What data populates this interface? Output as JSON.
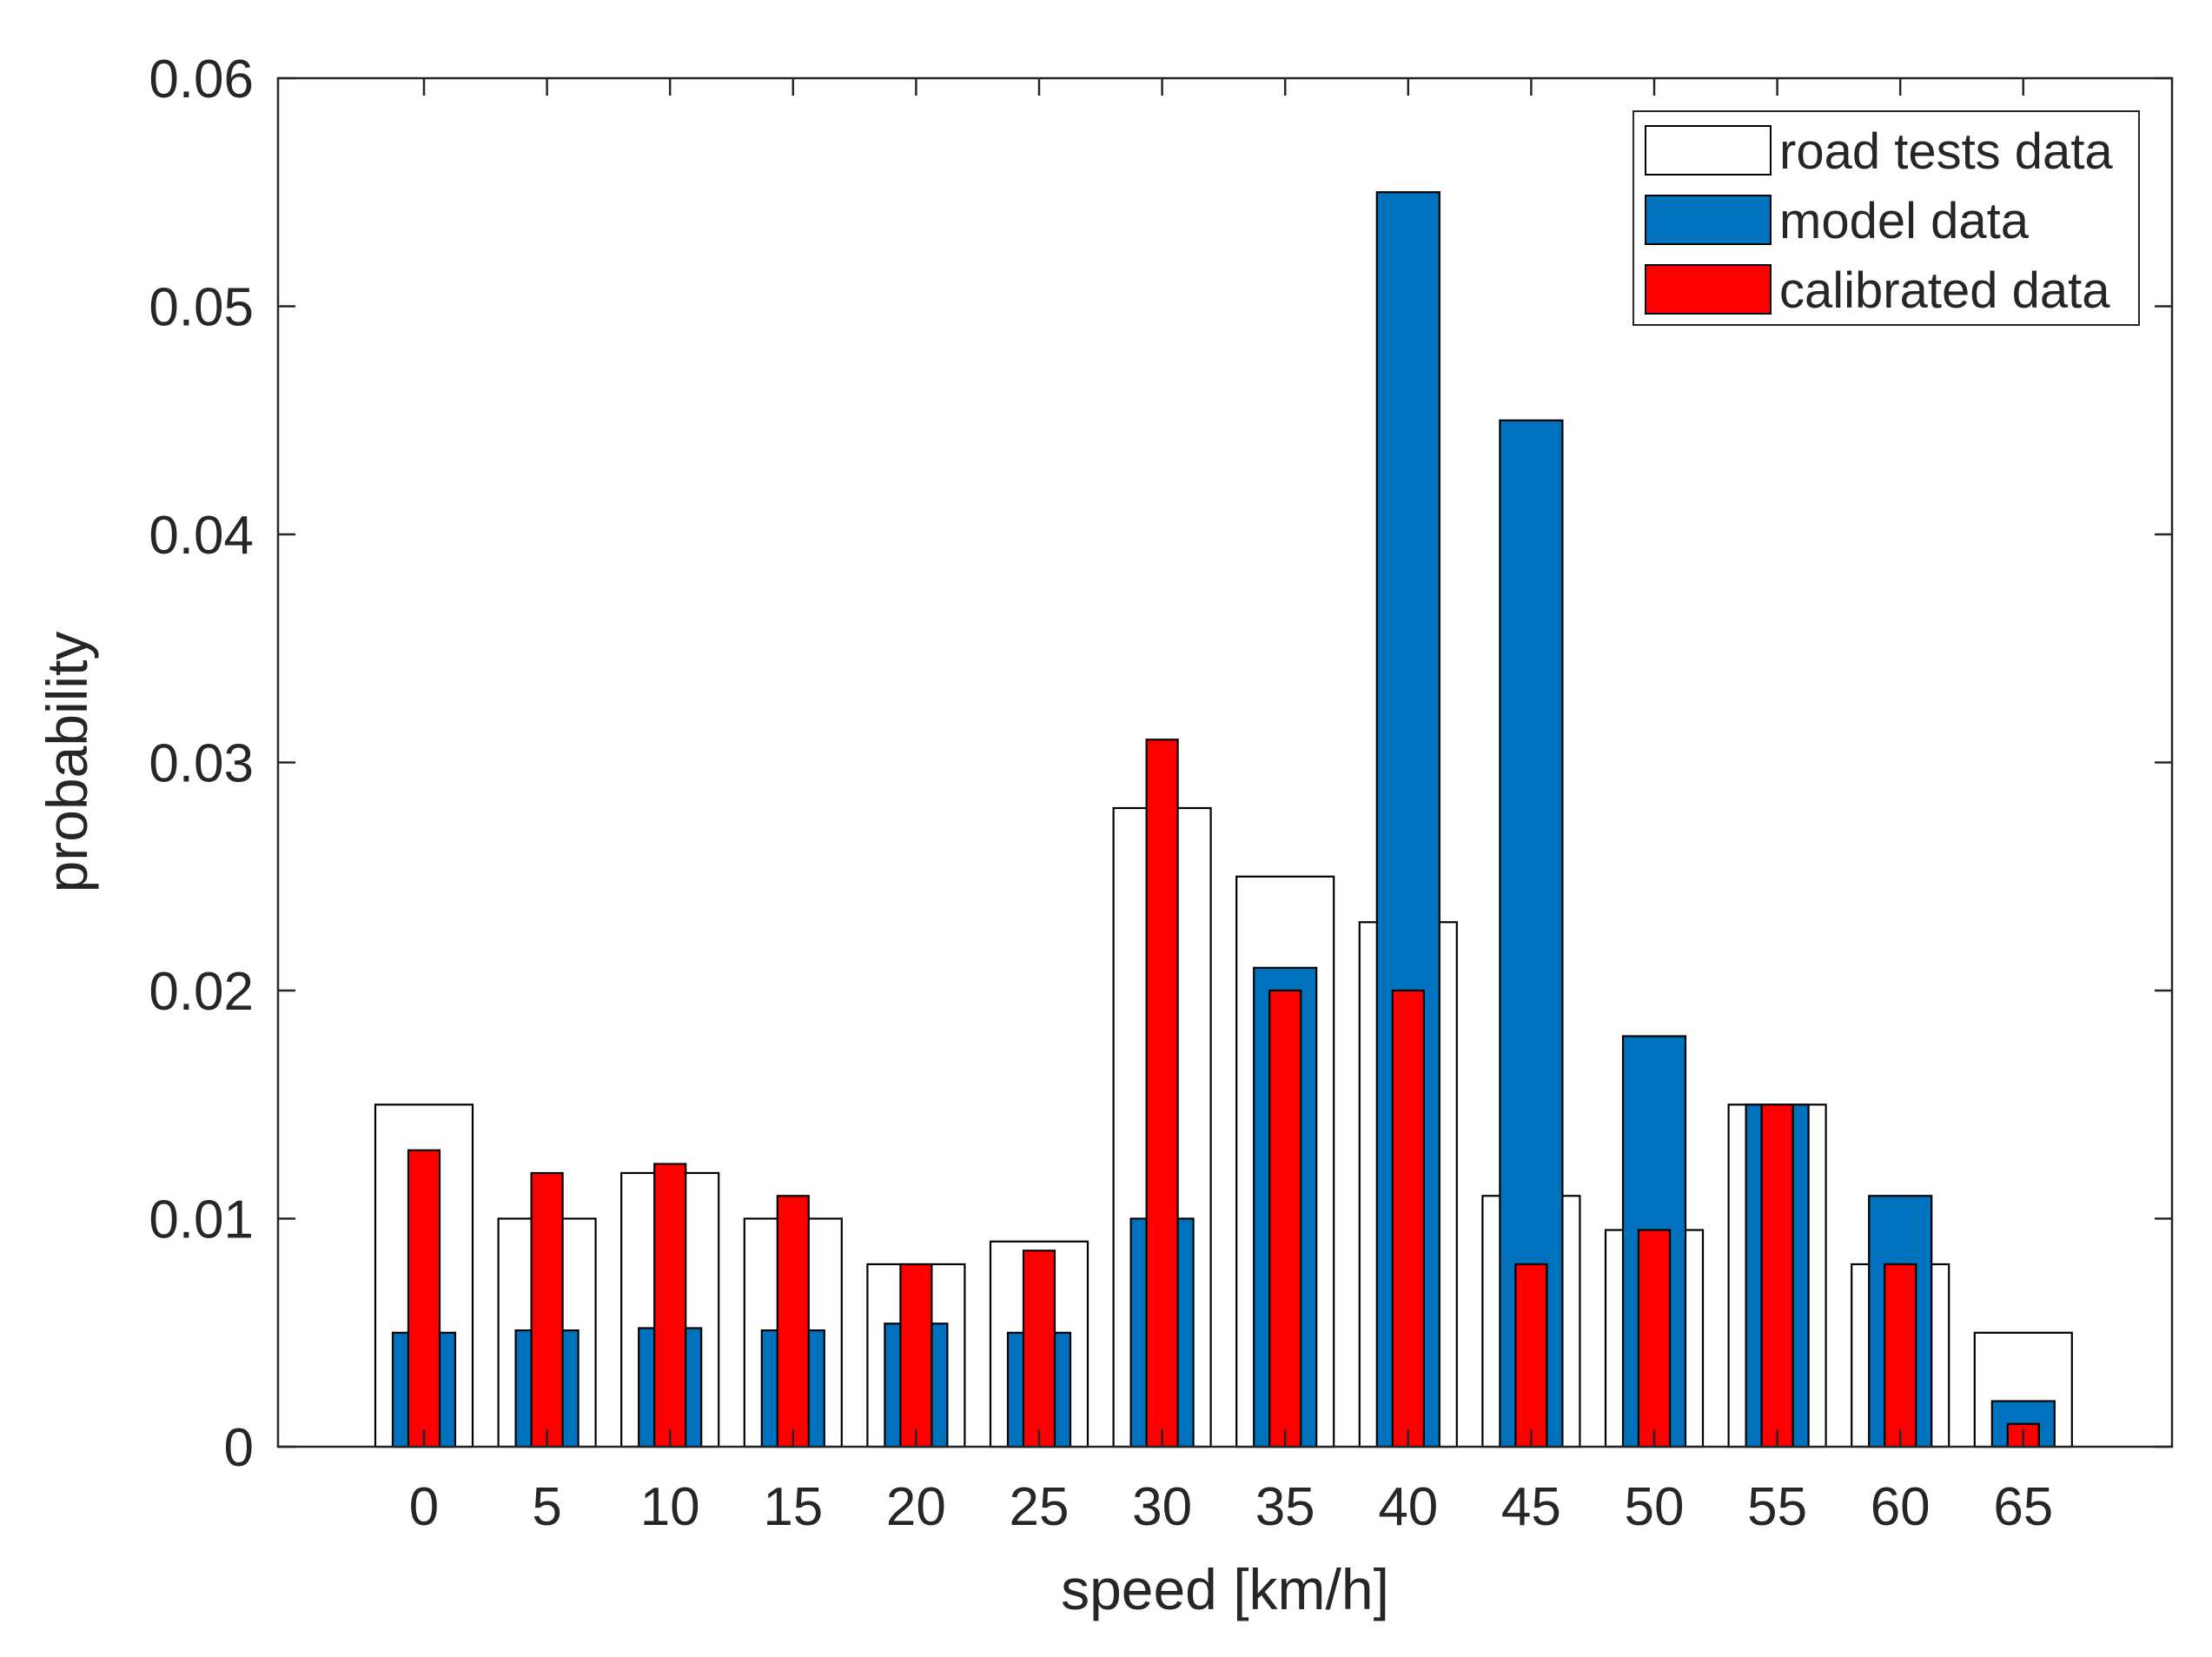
{
  "chart_data": {
    "type": "bar",
    "title": "",
    "xlabel": "speed [km/h]",
    "ylabel": "probability",
    "categories": [
      "0",
      "5",
      "10",
      "15",
      "20",
      "25",
      "30",
      "35",
      "40",
      "45",
      "50",
      "55",
      "60",
      "65"
    ],
    "ylim": [
      0,
      0.06
    ],
    "yticks": [
      0,
      0.01,
      0.02,
      0.03,
      0.04,
      0.05,
      0.06
    ],
    "ytick_labels": [
      "0",
      "0.01",
      "0.02",
      "0.03",
      "0.04",
      "0.05",
      "0.06"
    ],
    "grid": false,
    "legend_position": "top-right",
    "series": [
      {
        "name": "road tests data",
        "color": "#ffffff",
        "values": [
          0.015,
          0.01,
          0.012,
          0.01,
          0.008,
          0.009,
          0.028,
          0.025,
          0.023,
          0.011,
          0.0095,
          0.015,
          0.008,
          0.005
        ]
      },
      {
        "name": "model data",
        "color": "#0072bd",
        "values": [
          0.005,
          0.0051,
          0.0052,
          0.0051,
          0.0054,
          0.005,
          0.01,
          0.021,
          0.055,
          0.045,
          0.018,
          0.015,
          0.011,
          0.002
        ]
      },
      {
        "name": "calibrated data",
        "color": "#ff0000",
        "values": [
          0.013,
          0.012,
          0.0124,
          0.011,
          0.008,
          0.0086,
          0.031,
          0.02,
          0.02,
          0.008,
          0.0095,
          0.015,
          0.008,
          0.001
        ]
      }
    ]
  }
}
